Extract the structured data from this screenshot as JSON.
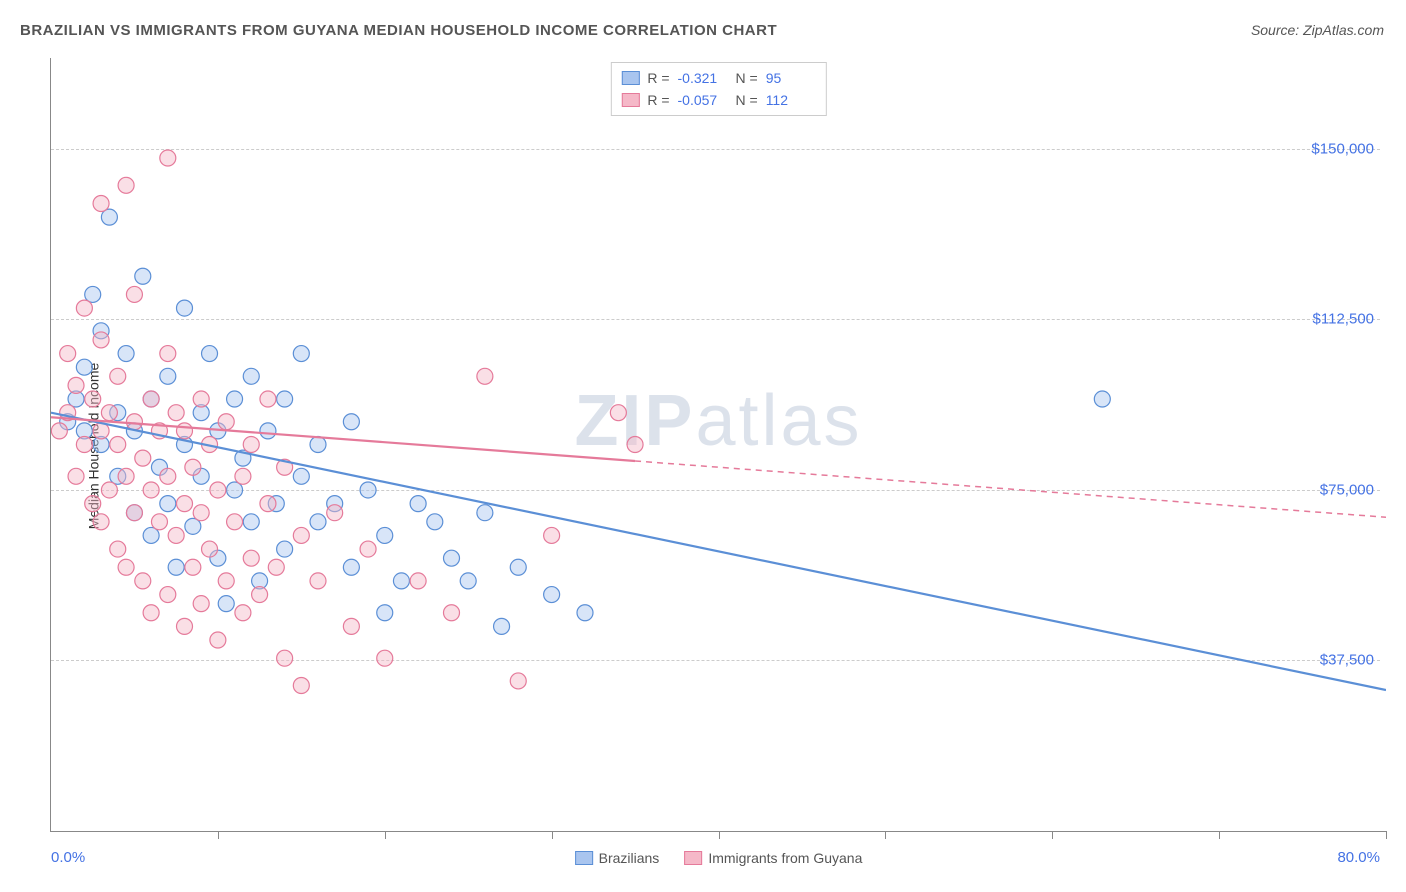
{
  "title": "BRAZILIAN VS IMMIGRANTS FROM GUYANA MEDIAN HOUSEHOLD INCOME CORRELATION CHART",
  "source": "Source: ZipAtlas.com",
  "watermark": "ZIPatlas",
  "ylabel": "Median Household Income",
  "chart": {
    "type": "scatter-with-regression",
    "xlim": [
      0,
      80
    ],
    "ylim": [
      0,
      170000
    ],
    "xaxis_min_label": "0.0%",
    "xaxis_max_label": "80.0%",
    "ytick_values": [
      37500,
      75000,
      112500,
      150000
    ],
    "ytick_labels": [
      "$37,500",
      "$75,000",
      "$112,500",
      "$150,000"
    ],
    "xtick_positions": [
      0,
      10,
      20,
      30,
      40,
      50,
      60,
      70,
      80
    ],
    "grid_color": "#cccccc",
    "axis_color": "#888888",
    "background_color": "#ffffff",
    "label_color": "#4472e4",
    "title_color": "#555555",
    "title_fontsize": 15,
    "label_fontsize": 14,
    "tick_fontsize": 15,
    "marker_radius": 8,
    "marker_opacity": 0.45,
    "line_width": 2.2
  },
  "series": [
    {
      "name": "Brazilians",
      "legend_label": "Brazilians",
      "color_fill": "#a9c5ef",
      "color_stroke": "#5b8fd6",
      "R": "-0.321",
      "N": "95",
      "regression": {
        "x1": 0,
        "y1": 92000,
        "x2": 80,
        "y2": 31000,
        "dashed_after_x": null
      },
      "points": [
        [
          1,
          90000
        ],
        [
          1.5,
          95000
        ],
        [
          2,
          88000
        ],
        [
          2,
          102000
        ],
        [
          2.5,
          118000
        ],
        [
          3,
          85000
        ],
        [
          3,
          110000
        ],
        [
          3.5,
          135000
        ],
        [
          4,
          78000
        ],
        [
          4,
          92000
        ],
        [
          4.5,
          105000
        ],
        [
          5,
          70000
        ],
        [
          5,
          88000
        ],
        [
          5.5,
          122000
        ],
        [
          6,
          65000
        ],
        [
          6,
          95000
        ],
        [
          6.5,
          80000
        ],
        [
          7,
          72000
        ],
        [
          7,
          100000
        ],
        [
          7.5,
          58000
        ],
        [
          8,
          85000
        ],
        [
          8,
          115000
        ],
        [
          8.5,
          67000
        ],
        [
          9,
          78000
        ],
        [
          9,
          92000
        ],
        [
          9.5,
          105000
        ],
        [
          10,
          60000
        ],
        [
          10,
          88000
        ],
        [
          10.5,
          50000
        ],
        [
          11,
          75000
        ],
        [
          11,
          95000
        ],
        [
          11.5,
          82000
        ],
        [
          12,
          68000
        ],
        [
          12,
          100000
        ],
        [
          12.5,
          55000
        ],
        [
          13,
          88000
        ],
        [
          13.5,
          72000
        ],
        [
          14,
          95000
        ],
        [
          14,
          62000
        ],
        [
          15,
          78000
        ],
        [
          15,
          105000
        ],
        [
          16,
          68000
        ],
        [
          16,
          85000
        ],
        [
          17,
          72000
        ],
        [
          18,
          58000
        ],
        [
          18,
          90000
        ],
        [
          19,
          75000
        ],
        [
          20,
          65000
        ],
        [
          20,
          48000
        ],
        [
          21,
          55000
        ],
        [
          22,
          72000
        ],
        [
          23,
          68000
        ],
        [
          24,
          60000
        ],
        [
          25,
          55000
        ],
        [
          26,
          70000
        ],
        [
          27,
          45000
        ],
        [
          28,
          58000
        ],
        [
          30,
          52000
        ],
        [
          32,
          48000
        ],
        [
          63,
          95000
        ]
      ]
    },
    {
      "name": "Immigrants from Guyana",
      "legend_label": "Immigrants from Guyana",
      "color_fill": "#f5b8c8",
      "color_stroke": "#e57a9a",
      "R": "-0.057",
      "N": "112",
      "regression": {
        "x1": 0,
        "y1": 91000,
        "x2": 80,
        "y2": 69000,
        "dashed_after_x": 35
      },
      "points": [
        [
          0.5,
          88000
        ],
        [
          1,
          92000
        ],
        [
          1,
          105000
        ],
        [
          1.5,
          78000
        ],
        [
          1.5,
          98000
        ],
        [
          2,
          85000
        ],
        [
          2,
          115000
        ],
        [
          2.5,
          72000
        ],
        [
          2.5,
          95000
        ],
        [
          3,
          68000
        ],
        [
          3,
          88000
        ],
        [
          3,
          108000
        ],
        [
          3,
          138000
        ],
        [
          3.5,
          75000
        ],
        [
          3.5,
          92000
        ],
        [
          4,
          62000
        ],
        [
          4,
          85000
        ],
        [
          4,
          100000
        ],
        [
          4.5,
          58000
        ],
        [
          4.5,
          78000
        ],
        [
          4.5,
          142000
        ],
        [
          5,
          70000
        ],
        [
          5,
          90000
        ],
        [
          5,
          118000
        ],
        [
          5.5,
          55000
        ],
        [
          5.5,
          82000
        ],
        [
          6,
          48000
        ],
        [
          6,
          75000
        ],
        [
          6,
          95000
        ],
        [
          6.5,
          68000
        ],
        [
          6.5,
          88000
        ],
        [
          7,
          52000
        ],
        [
          7,
          78000
        ],
        [
          7,
          105000
        ],
        [
          7,
          148000
        ],
        [
          7.5,
          65000
        ],
        [
          7.5,
          92000
        ],
        [
          8,
          45000
        ],
        [
          8,
          72000
        ],
        [
          8,
          88000
        ],
        [
          8.5,
          58000
        ],
        [
          8.5,
          80000
        ],
        [
          9,
          50000
        ],
        [
          9,
          70000
        ],
        [
          9,
          95000
        ],
        [
          9.5,
          62000
        ],
        [
          9.5,
          85000
        ],
        [
          10,
          42000
        ],
        [
          10,
          75000
        ],
        [
          10.5,
          55000
        ],
        [
          10.5,
          90000
        ],
        [
          11,
          68000
        ],
        [
          11.5,
          48000
        ],
        [
          11.5,
          78000
        ],
        [
          12,
          60000
        ],
        [
          12,
          85000
        ],
        [
          12.5,
          52000
        ],
        [
          13,
          72000
        ],
        [
          13,
          95000
        ],
        [
          13.5,
          58000
        ],
        [
          14,
          38000
        ],
        [
          14,
          80000
        ],
        [
          15,
          65000
        ],
        [
          15,
          32000
        ],
        [
          16,
          55000
        ],
        [
          17,
          70000
        ],
        [
          18,
          45000
        ],
        [
          19,
          62000
        ],
        [
          20,
          38000
        ],
        [
          22,
          55000
        ],
        [
          24,
          48000
        ],
        [
          26,
          100000
        ],
        [
          28,
          33000
        ],
        [
          30,
          65000
        ],
        [
          34,
          92000
        ],
        [
          35,
          85000
        ]
      ]
    }
  ],
  "stats_box": {
    "rows": [
      {
        "swatch_fill": "#a9c5ef",
        "swatch_stroke": "#5b8fd6",
        "r_label": "R =",
        "r_value": "-0.321",
        "n_label": "N =",
        "n_value": "95"
      },
      {
        "swatch_fill": "#f5b8c8",
        "swatch_stroke": "#e57a9a",
        "r_label": "R =",
        "r_value": "-0.057",
        "n_label": "N =",
        "n_value": "112"
      }
    ]
  }
}
